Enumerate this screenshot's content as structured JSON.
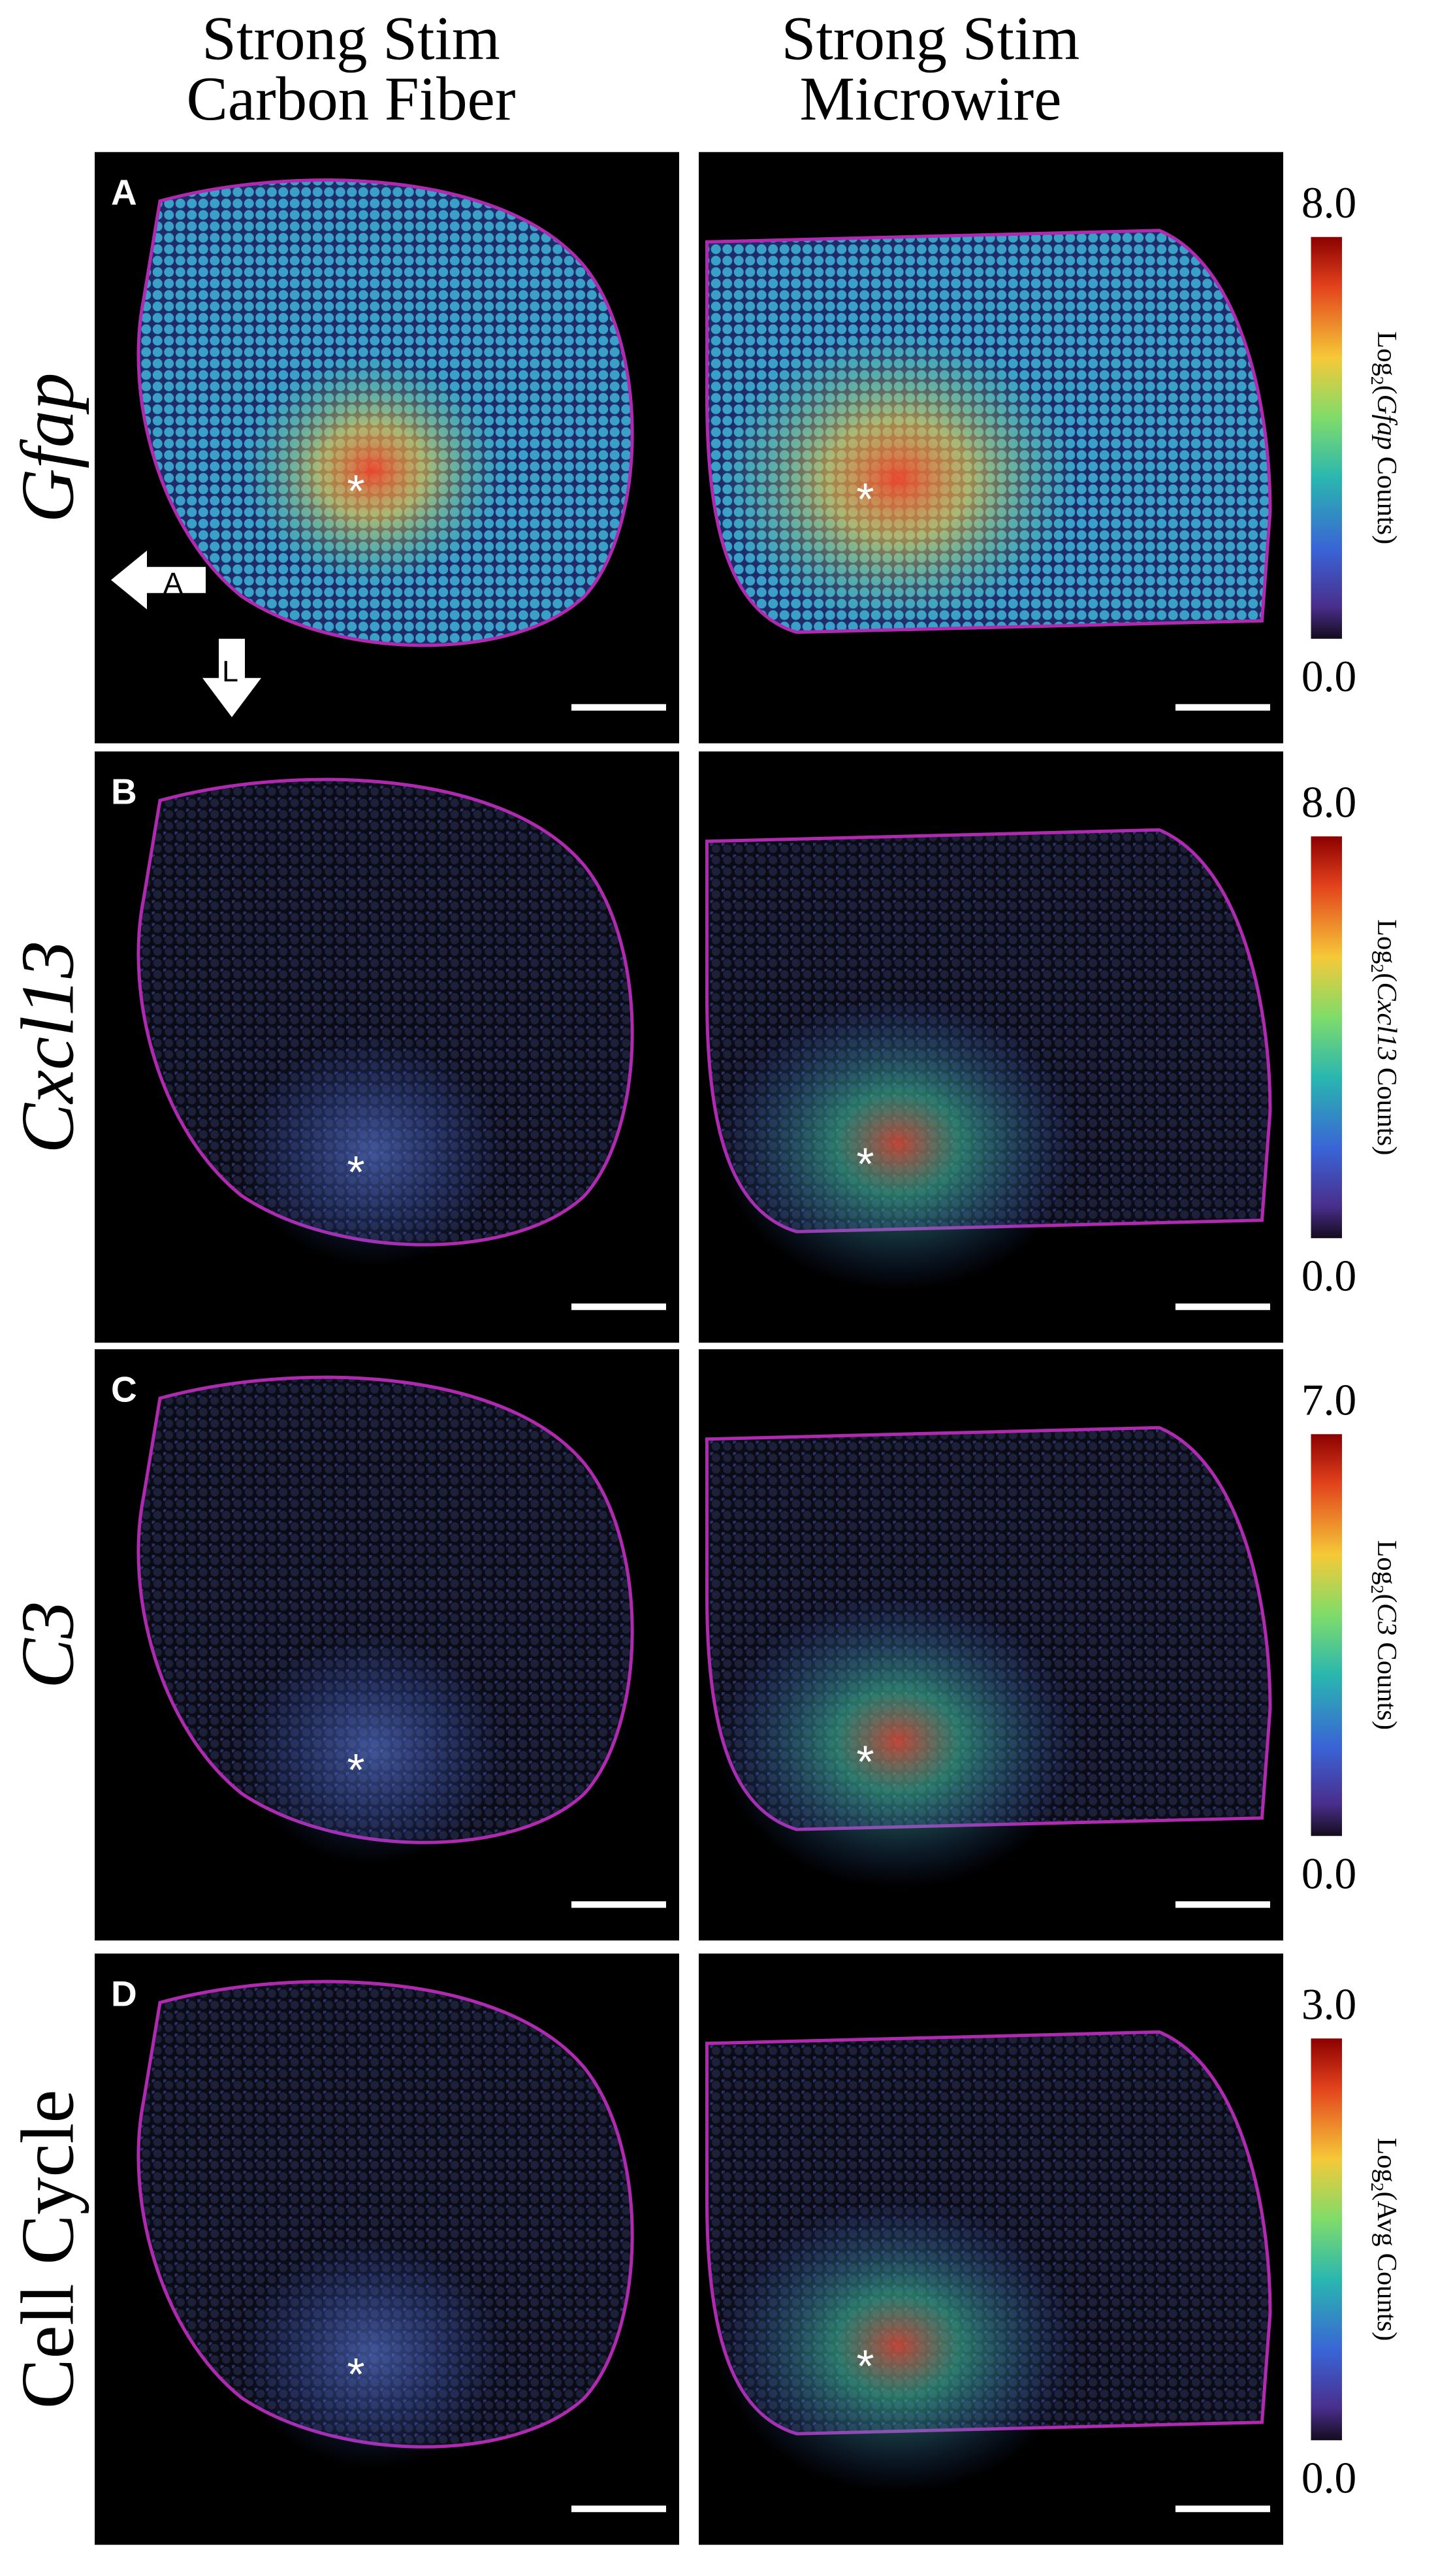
{
  "columns": [
    [
      "Strong Stim",
      "Carbon Fiber"
    ],
    [
      "Strong Stim",
      "Microwire"
    ]
  ],
  "marker": "*",
  "orientation": {
    "anterior": "A",
    "lateral": "L"
  },
  "rows": [
    {
      "panel": "A",
      "label": "Gfap",
      "italic": true,
      "colorbar": {
        "max": "8.0",
        "min": "0.0",
        "title": [
          "Log",
          "2",
          "(",
          "Gfap",
          "Counts)"
        ]
      }
    },
    {
      "panel": "B",
      "label": "Cxcl13",
      "italic": true,
      "colorbar": {
        "max": "8.0",
        "min": "0.0",
        "title": [
          "Log",
          "2",
          "(",
          "Cxcl13",
          "Counts)"
        ]
      }
    },
    {
      "panel": "C",
      "label": "C3",
      "italic": true,
      "colorbar": {
        "max": "7.0",
        "min": "0.0",
        "title": [
          "Log",
          "2",
          "(",
          "C3",
          "Counts)"
        ]
      }
    },
    {
      "panel": "D",
      "label": "Cell Cycle",
      "italic": false,
      "colorbar": {
        "max": "3.0",
        "min": "0.0",
        "title": [
          "Log",
          "2",
          "(",
          "Avg",
          "Counts)"
        ]
      }
    }
  ]
}
